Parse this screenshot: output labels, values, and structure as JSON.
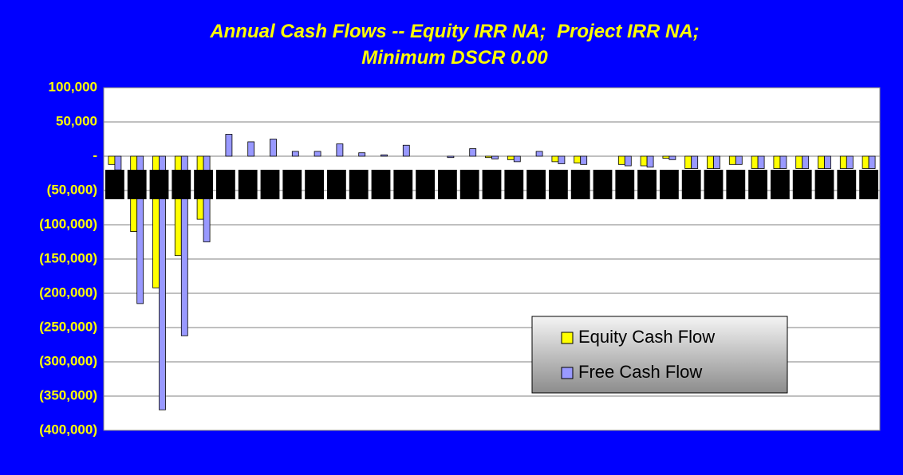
{
  "chart_data": {
    "type": "bar",
    "title": [
      "Annual Cash Flows -- Equity IRR NA;  Project IRR NA;",
      "Minimum DSCR 0.00"
    ],
    "categories": [
      null,
      null,
      null,
      null,
      null,
      null,
      null,
      null,
      null,
      null,
      null,
      null,
      null,
      null,
      null,
      null,
      null,
      null,
      null,
      null,
      null,
      null,
      null,
      null,
      null,
      null,
      null,
      null,
      null,
      null,
      null,
      null,
      null,
      null,
      null
    ],
    "series": [
      {
        "name": "Equity Cash Flow",
        "color": "#ffff00",
        "values": [
          -12000,
          -110000,
          -192000,
          -145000,
          -92000,
          0,
          0,
          0,
          0,
          0,
          0,
          0,
          0,
          0,
          0,
          0,
          0,
          -2000,
          -5000,
          0,
          -8000,
          -10000,
          0,
          -12000,
          -14000,
          -3000,
          -18000,
          -18000,
          -12000,
          -18000,
          -18000,
          -18000,
          -18000,
          -18000,
          -18000
        ]
      },
      {
        "name": "Free Cash Flow",
        "color": "#9999ff",
        "values": [
          -20000,
          -215000,
          -370000,
          -262000,
          -125000,
          32000,
          21000,
          25000,
          7000,
          7000,
          18000,
          5000,
          2000,
          16000,
          0,
          -2000,
          11000,
          -4000,
          -8000,
          7000,
          -11000,
          -12000,
          0,
          -14000,
          -16000,
          -5000,
          -18000,
          -18000,
          -12000,
          -18000,
          -18000,
          -18000,
          -18000,
          -18000,
          -18000
        ]
      }
    ],
    "ylim": [
      -400000,
      100000
    ],
    "yticks": [
      {
        "value": 100000,
        "label": "100,000"
      },
      {
        "value": 50000,
        "label": "50,000"
      },
      {
        "value": 0,
        "label": "-"
      },
      {
        "value": -50000,
        "label": "(50,000)"
      },
      {
        "value": -100000,
        "label": "(100,000)"
      },
      {
        "value": -150000,
        "label": "(150,000)"
      },
      {
        "value": -200000,
        "label": "(200,000)"
      },
      {
        "value": -250000,
        "label": "(250,000)"
      },
      {
        "value": -300000,
        "label": "(300,000)"
      },
      {
        "value": -350000,
        "label": "(350,000)"
      },
      {
        "value": -400000,
        "label": "(400,000)"
      }
    ],
    "grid": true,
    "legend": "lower right"
  }
}
